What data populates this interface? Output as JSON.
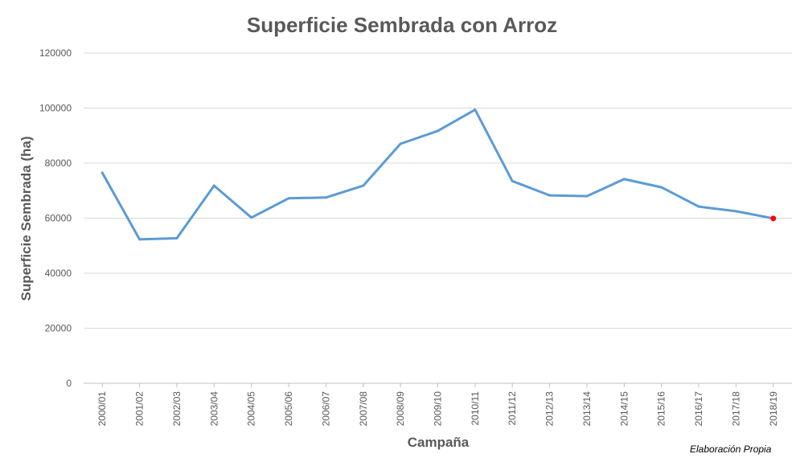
{
  "chart_data": {
    "type": "line",
    "title": "Superficie Sembrada con Arroz",
    "xlabel": "Campaña",
    "ylabel": "Superficie Sembrada (ha)",
    "categories": [
      "2000/01",
      "2001/02",
      "2002/03",
      "2003/04",
      "2004/05",
      "2005/06",
      "2006/07",
      "2007/08",
      "2008/09",
      "2009/10",
      "2010/11",
      "2011/12",
      "2012/13",
      "2013/14",
      "2014/15",
      "2015/16",
      "2016/17",
      "2017/18",
      "2018/19"
    ],
    "series": [
      {
        "values": [
          76500,
          52300,
          52700,
          71800,
          60200,
          67200,
          67500,
          71800,
          87000,
          91700,
          99400,
          73500,
          68300,
          68000,
          74200,
          71200,
          64200,
          62500,
          59900
        ],
        "color": "#5b9bd5",
        "highlight_last_point_color": "#ff0000"
      }
    ],
    "ylim": [
      0,
      120000
    ],
    "yticks": [
      0,
      20000,
      40000,
      60000,
      80000,
      100000,
      120000
    ],
    "grid": true,
    "legend": "none"
  },
  "footnote": "Elaboración Propia"
}
